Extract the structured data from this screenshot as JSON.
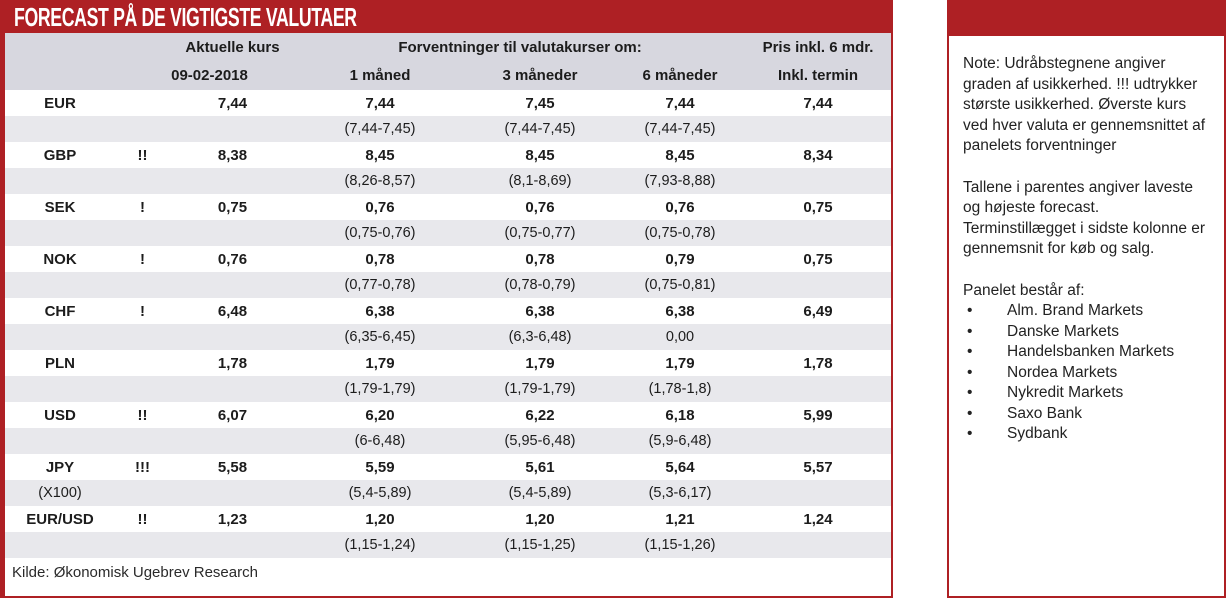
{
  "title": "FORECAST PÅ DE VIGTIGSTE VALUTAER",
  "colors": {
    "accent_red": "#ae2024",
    "header_gray": "#d7d7df",
    "stripe_gray": "#e8e8ec"
  },
  "table": {
    "header": {
      "aktuelle_kurs": "Aktuelle kurs",
      "date": "09-02-2018",
      "forventninger": "Forventninger til valutakurser om:",
      "m1": "1 måned",
      "m3": "3 måneder",
      "m6": "6 måneder",
      "pris_line1": "Pris inkl. 6 mdr.",
      "pris_line2": "Inkl. termin"
    },
    "rows": [
      {
        "code": "EUR",
        "sub": "",
        "warn": "",
        "current": "7,44",
        "m1": "7,44",
        "m1_range": "(7,44-7,45)",
        "m3": "7,45",
        "m3_range": "(7,44-7,45)",
        "m6": "7,44",
        "m6_range": "(7,44-7,45)",
        "pris": "7,44"
      },
      {
        "code": "GBP",
        "sub": "",
        "warn": "!!",
        "current": "8,38",
        "m1": "8,45",
        "m1_range": "(8,26-8,57)",
        "m3": "8,45",
        "m3_range": "(8,1-8,69)",
        "m6": "8,45",
        "m6_range": "(7,93-8,88)",
        "pris": "8,34"
      },
      {
        "code": "SEK",
        "sub": "",
        "warn": "!",
        "current": "0,75",
        "m1": "0,76",
        "m1_range": "(0,75-0,76)",
        "m3": "0,76",
        "m3_range": "(0,75-0,77)",
        "m6": "0,76",
        "m6_range": "(0,75-0,78)",
        "pris": "0,75"
      },
      {
        "code": "NOK",
        "sub": "",
        "warn": "!",
        "current": "0,76",
        "m1": "0,78",
        "m1_range": "(0,77-0,78)",
        "m3": "0,78",
        "m3_range": "(0,78-0,79)",
        "m6": "0,79",
        "m6_range": "(0,75-0,81)",
        "pris": "0,75"
      },
      {
        "code": "CHF",
        "sub": "",
        "warn": "!",
        "current": "6,48",
        "m1": "6,38",
        "m1_range": "(6,35-6,45)",
        "m3": "6,38",
        "m3_range": "(6,3-6,48)",
        "m6": "6,38",
        "m6_range": "0,00",
        "pris": "6,49"
      },
      {
        "code": "PLN",
        "sub": "",
        "warn": "",
        "current": "1,78",
        "m1": "1,79",
        "m1_range": "(1,79-1,79)",
        "m3": "1,79",
        "m3_range": "(1,79-1,79)",
        "m6": "1,79",
        "m6_range": "(1,78-1,8)",
        "pris": "1,78"
      },
      {
        "code": "USD",
        "sub": "",
        "warn": "!!",
        "current": "6,07",
        "m1": "6,20",
        "m1_range": "(6-6,48)",
        "m3": "6,22",
        "m3_range": "(5,95-6,48)",
        "m6": "6,18",
        "m6_range": "(5,9-6,48)",
        "pris": "5,99"
      },
      {
        "code": "JPY",
        "sub": "(X100)",
        "warn": "!!!",
        "current": "5,58",
        "m1": "5,59",
        "m1_range": "(5,4-5,89)",
        "m3": "5,61",
        "m3_range": "(5,4-5,89)",
        "m6": "5,64",
        "m6_range": "(5,3-6,17)",
        "pris": "5,57"
      },
      {
        "code": "EUR/USD",
        "sub": "",
        "warn": "!!",
        "current": "1,23",
        "m1": "1,20",
        "m1_range": "(1,15-1,24)",
        "m3": "1,20",
        "m3_range": "(1,15-1,25)",
        "m6": "1,21",
        "m6_range": "(1,15-1,26)",
        "pris": "1,24"
      }
    ],
    "source": "Kilde: Økonomisk Ugebrev Research"
  },
  "note": {
    "paragraphs": [
      "Note: Udråbstegnene angiver graden af usikkerhed. !!! udtrykker største usikkerhed. Øverste kurs ved hver valuta er gennemsnittet af panelets forventninger",
      "Tallene i parentes angiver laveste og højeste forecast. Terminstillægget i sidste kolonne er gennemsnit for køb og salg."
    ],
    "panel_title": "Panelet består af:",
    "panel_members": [
      "Alm. Brand Markets",
      "Danske Markets",
      "Handelsbanken Markets",
      "Nordea Markets",
      "Nykredit Markets",
      "Saxo Bank",
      "Sydbank"
    ]
  }
}
